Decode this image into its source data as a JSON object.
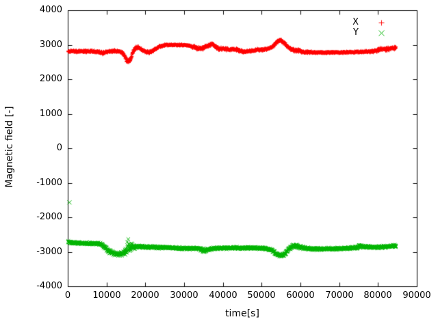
{
  "figure": {
    "background": "#ffffff",
    "border_color": "#000000",
    "text_color": "#000000"
  },
  "chart_data": {
    "type": "scatter",
    "title": "",
    "xlabel": "time[s]",
    "ylabel": "Magnetic field [-]",
    "xlim": [
      0,
      90000
    ],
    "ylim": [
      -4000,
      4000
    ],
    "xticks": [
      0,
      10000,
      20000,
      30000,
      40000,
      50000,
      60000,
      70000,
      80000,
      90000
    ],
    "yticks": [
      -4000,
      -3000,
      -2000,
      -1000,
      0,
      1000,
      2000,
      3000,
      4000
    ],
    "grid": false,
    "legend_position": "top-right",
    "series": [
      {
        "name": "X",
        "color": "#ff0000",
        "marker": "+",
        "trend": [
          [
            0,
            2820,
            40
          ],
          [
            2000,
            2820,
            40
          ],
          [
            4000,
            2815,
            40
          ],
          [
            6000,
            2825,
            40
          ],
          [
            8000,
            2800,
            45
          ],
          [
            9000,
            2770,
            50
          ],
          [
            10000,
            2815,
            45
          ],
          [
            12000,
            2830,
            40
          ],
          [
            13500,
            2810,
            40
          ],
          [
            14500,
            2700,
            70
          ],
          [
            15300,
            2520,
            80
          ],
          [
            16000,
            2560,
            80
          ],
          [
            16700,
            2780,
            60
          ],
          [
            17500,
            2930,
            50
          ],
          [
            18300,
            2920,
            45
          ],
          [
            19200,
            2850,
            45
          ],
          [
            20000,
            2800,
            45
          ],
          [
            21000,
            2790,
            45
          ],
          [
            22000,
            2850,
            45
          ],
          [
            23500,
            2950,
            40
          ],
          [
            25000,
            3000,
            30
          ],
          [
            27000,
            3005,
            25
          ],
          [
            29000,
            3000,
            25
          ],
          [
            31000,
            2995,
            30
          ],
          [
            32500,
            2940,
            50
          ],
          [
            33500,
            2900,
            55
          ],
          [
            34500,
            2900,
            50
          ],
          [
            35500,
            2950,
            55
          ],
          [
            36500,
            3000,
            55
          ],
          [
            37200,
            3040,
            50
          ],
          [
            38000,
            2960,
            70
          ],
          [
            39000,
            2890,
            55
          ],
          [
            40000,
            2900,
            50
          ],
          [
            41500,
            2870,
            45
          ],
          [
            43000,
            2880,
            45
          ],
          [
            44500,
            2830,
            45
          ],
          [
            45500,
            2800,
            45
          ],
          [
            47000,
            2830,
            40
          ],
          [
            48500,
            2860,
            40
          ],
          [
            50000,
            2870,
            40
          ],
          [
            51500,
            2890,
            40
          ],
          [
            52800,
            2960,
            45
          ],
          [
            54000,
            3110,
            45
          ],
          [
            54800,
            3140,
            40
          ],
          [
            55600,
            3070,
            50
          ],
          [
            56500,
            2960,
            50
          ],
          [
            57500,
            2880,
            55
          ],
          [
            58500,
            2850,
            60
          ],
          [
            59500,
            2850,
            55
          ],
          [
            60500,
            2810,
            45
          ],
          [
            62000,
            2795,
            35
          ],
          [
            64000,
            2790,
            30
          ],
          [
            66000,
            2785,
            28
          ],
          [
            68000,
            2788,
            28
          ],
          [
            70000,
            2785,
            28
          ],
          [
            72000,
            2790,
            28
          ],
          [
            74000,
            2800,
            30
          ],
          [
            76000,
            2808,
            32
          ],
          [
            78000,
            2810,
            35
          ],
          [
            79500,
            2840,
            50
          ],
          [
            80500,
            2880,
            60
          ],
          [
            81500,
            2870,
            60
          ],
          [
            82500,
            2890,
            60
          ],
          [
            83500,
            2910,
            55
          ],
          [
            84500,
            2920,
            50
          ]
        ],
        "outliers": []
      },
      {
        "name": "Y",
        "color": "#00b400",
        "marker": "x",
        "trend": [
          [
            0,
            -2710,
            40
          ],
          [
            1500,
            -2725,
            40
          ],
          [
            3000,
            -2740,
            38
          ],
          [
            5000,
            -2748,
            38
          ],
          [
            7000,
            -2750,
            40
          ],
          [
            8500,
            -2770,
            45
          ],
          [
            9500,
            -2850,
            55
          ],
          [
            10500,
            -2980,
            60
          ],
          [
            11500,
            -3030,
            60
          ],
          [
            12500,
            -3055,
            60
          ],
          [
            13500,
            -3050,
            70
          ],
          [
            14300,
            -3020,
            90
          ],
          [
            15000,
            -2950,
            200
          ],
          [
            15600,
            -2870,
            280
          ],
          [
            16200,
            -2890,
            220
          ],
          [
            16800,
            -2870,
            90
          ],
          [
            17500,
            -2850,
            50
          ],
          [
            19000,
            -2845,
            42
          ],
          [
            21000,
            -2855,
            40
          ],
          [
            23000,
            -2860,
            40
          ],
          [
            25000,
            -2865,
            40
          ],
          [
            27000,
            -2875,
            40
          ],
          [
            29000,
            -2890,
            42
          ],
          [
            31000,
            -2895,
            40
          ],
          [
            33000,
            -2885,
            40
          ],
          [
            34500,
            -2920,
            55
          ],
          [
            35200,
            -2960,
            60
          ],
          [
            36000,
            -2920,
            50
          ],
          [
            37500,
            -2895,
            42
          ],
          [
            39000,
            -2890,
            40
          ],
          [
            40500,
            -2875,
            42
          ],
          [
            42000,
            -2885,
            50
          ],
          [
            43500,
            -2875,
            42
          ],
          [
            45000,
            -2880,
            40
          ],
          [
            46500,
            -2875,
            40
          ],
          [
            48000,
            -2880,
            40
          ],
          [
            49500,
            -2885,
            40
          ],
          [
            51000,
            -2895,
            42
          ],
          [
            52500,
            -2940,
            45
          ],
          [
            53500,
            -3030,
            55
          ],
          [
            54500,
            -3100,
            55
          ],
          [
            55500,
            -3085,
            55
          ],
          [
            56300,
            -2990,
            60
          ],
          [
            57200,
            -2880,
            65
          ],
          [
            58200,
            -2810,
            70
          ],
          [
            59200,
            -2830,
            60
          ],
          [
            60200,
            -2860,
            50
          ],
          [
            61500,
            -2890,
            42
          ],
          [
            63000,
            -2905,
            40
          ],
          [
            65000,
            -2905,
            38
          ],
          [
            67000,
            -2900,
            38
          ],
          [
            69000,
            -2900,
            38
          ],
          [
            71000,
            -2895,
            38
          ],
          [
            73000,
            -2885,
            40
          ],
          [
            74500,
            -2860,
            50
          ],
          [
            75500,
            -2815,
            70
          ],
          [
            76500,
            -2845,
            55
          ],
          [
            78000,
            -2860,
            42
          ],
          [
            80000,
            -2855,
            40
          ],
          [
            81500,
            -2845,
            42
          ],
          [
            83000,
            -2830,
            42
          ],
          [
            84500,
            -2820,
            45
          ]
        ],
        "outliers": [
          [
            350,
            -1560
          ]
        ]
      }
    ]
  }
}
